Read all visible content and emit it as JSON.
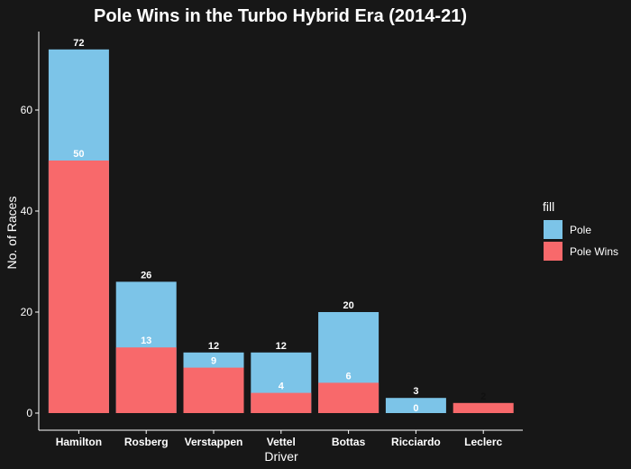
{
  "chart_data": {
    "type": "bar",
    "title": "Pole Wins in the Turbo Hybrid Era (2014-21)",
    "xlabel": "Driver",
    "ylabel": "No. of Races",
    "categories": [
      "Hamilton",
      "Rosberg",
      "Verstappen",
      "Vettel",
      "Bottas",
      "Ricciardo",
      "Leclerc"
    ],
    "series": [
      {
        "name": "Pole",
        "values": [
          72,
          26,
          12,
          12,
          20,
          3,
          null
        ],
        "color": "#7cc4e8"
      },
      {
        "name": "Pole Wins",
        "values": [
          50,
          13,
          9,
          4,
          6,
          0,
          2
        ],
        "color": "#f8696b"
      }
    ],
    "labels": {
      "Pole": [
        "72",
        "26",
        "12",
        "12",
        "20",
        "3",
        ""
      ],
      "Pole Wins": [
        "50",
        "13",
        "9",
        "4",
        "6",
        "0",
        "2"
      ]
    },
    "ylim": [
      0,
      75
    ],
    "yticks": [
      0,
      20,
      40,
      60
    ],
    "legend": {
      "title": "fill",
      "position": "right"
    },
    "grid": false,
    "colors": {
      "background": "#171717",
      "text": "#ffffff",
      "axis": "#ffffff"
    }
  }
}
